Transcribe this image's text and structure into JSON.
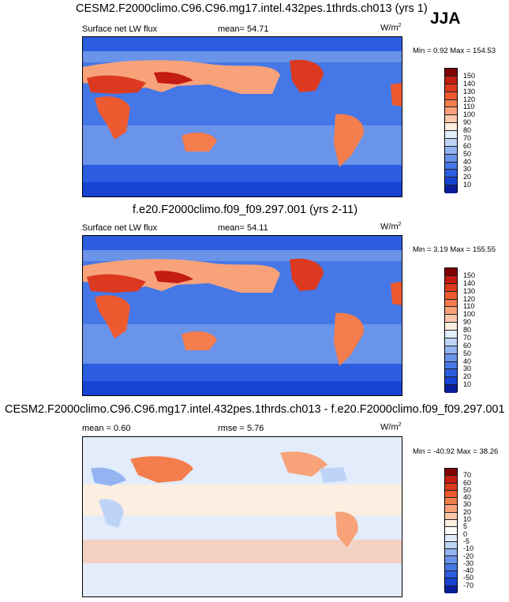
{
  "season": "JJA",
  "panels": [
    {
      "title": "CESM2.F2000climo.C96.C96.mg17.intel.432pes.1thrds.ch013 (yrs 1)",
      "left_label": "Surface net LW flux",
      "center_label": "mean=  54.71",
      "units": "W/m",
      "units_sup": "2",
      "minmax": "Min =   0.92 Max = 154.53",
      "scale": "abs"
    },
    {
      "title": "f.e20.F2000climo.f09_f09.297.001 (yrs 2-11)",
      "left_label": "Surface net LW flux",
      "center_label": "mean=  54.11",
      "units": "W/m",
      "units_sup": "2",
      "minmax": "Min =   3.19 Max = 155.55",
      "scale": "abs"
    },
    {
      "title": "CESM2.F2000climo.C96.C96.mg17.intel.432pes.1thrds.ch013 - f.e20.F2000climo.f09_f09.297.001",
      "left_label": "mean =   0.60",
      "center_label": "rmse =   5.76",
      "units": "W/m",
      "units_sup": "2",
      "minmax": "Min = -40.92 Max =  38.26",
      "scale": "diff"
    }
  ],
  "colorbars": {
    "abs": {
      "ticks": [
        "150",
        "140",
        "130",
        "120",
        "110",
        "100",
        "90",
        "80",
        "70",
        "60",
        "50",
        "40",
        "30",
        "20",
        "10"
      ],
      "colors": [
        "#800000",
        "#c31c13",
        "#dc3a20",
        "#ee5a30",
        "#f47d4d",
        "#f8a27a",
        "#fbc7aa",
        "#fdeee2",
        "#e2ecfb",
        "#bed4f7",
        "#93b4f1",
        "#6a93ea",
        "#4677e6",
        "#2c5de0",
        "#1643d2",
        "#0a1e9c"
      ]
    },
    "diff": {
      "ticks": [
        "70",
        "60",
        "50",
        "40",
        "30",
        "20",
        "10",
        "5",
        "0",
        "-5",
        "-10",
        "-20",
        "-30",
        "-40",
        "-50",
        "-70"
      ],
      "colors": [
        "#800000",
        "#c31c13",
        "#dc3a20",
        "#ee5a30",
        "#f47d4d",
        "#f8a27a",
        "#fbc7aa",
        "#fdeee2",
        "#ffffff",
        "#e2ecfb",
        "#bed4f7",
        "#93b4f1",
        "#6a93ea",
        "#4677e6",
        "#2c5de0",
        "#1643d2",
        "#0a1e9c"
      ]
    }
  },
  "chart_data": [
    {
      "type": "heatmap",
      "title": "CESM2.F2000climo.C96.C96.mg17.intel.432pes.1thrds.ch013 (yrs 1)",
      "variable": "Surface net LW flux",
      "units": "W/m2",
      "mean": 54.71,
      "min": 0.92,
      "max": 154.53,
      "levels": [
        10,
        20,
        30,
        40,
        50,
        60,
        70,
        80,
        90,
        100,
        110,
        120,
        130,
        140,
        150
      ],
      "season": "JJA"
    },
    {
      "type": "heatmap",
      "title": "f.e20.F2000climo.f09_f09.297.001 (yrs 2-11)",
      "variable": "Surface net LW flux",
      "units": "W/m2",
      "mean": 54.11,
      "min": 3.19,
      "max": 155.55,
      "levels": [
        10,
        20,
        30,
        40,
        50,
        60,
        70,
        80,
        90,
        100,
        110,
        120,
        130,
        140,
        150
      ],
      "season": "JJA"
    },
    {
      "type": "heatmap",
      "title": "CESM2.F2000climo.C96.C96.mg17.intel.432pes.1thrds.ch013 - f.e20.F2000climo.f09_f09.297.001",
      "variable": "Surface net LW flux difference",
      "units": "W/m2",
      "mean": 0.6,
      "rmse": 5.76,
      "min": -40.92,
      "max": 38.26,
      "levels": [
        -70,
        -50,
        -40,
        -30,
        -20,
        -10,
        -5,
        0,
        5,
        10,
        20,
        30,
        40,
        50,
        60,
        70
      ],
      "season": "JJA"
    }
  ]
}
